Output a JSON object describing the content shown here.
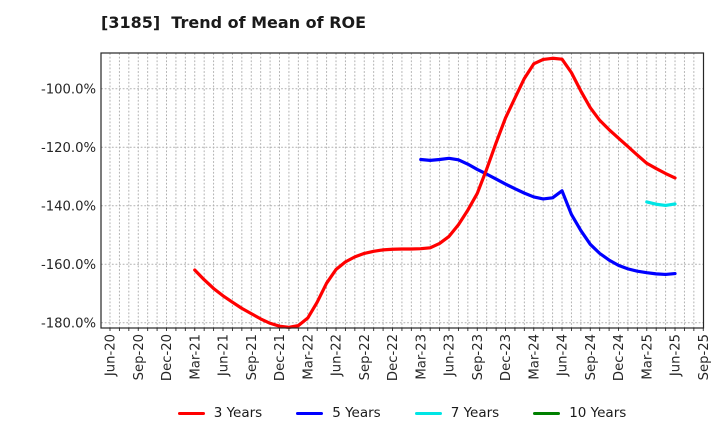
{
  "title": "[3185]  Trend of Mean of ROE",
  "colors": {
    "red": "#ff0000",
    "blue": "#0000ff",
    "cyan": "#00e5e5",
    "green": "#008000",
    "grid": "#b0b0b0",
    "frame": "#262626",
    "tick_text": "#262626",
    "title_text": "#1a1a1a",
    "background": "#ffffff"
  },
  "legend": {
    "items": [
      {
        "label": "3 Years",
        "color": "#ff0000"
      },
      {
        "label": "5 Years",
        "color": "#0000ff"
      },
      {
        "label": "7 Years",
        "color": "#00e5e5"
      },
      {
        "label": "10 Years",
        "color": "#008000"
      }
    ]
  },
  "chart_data": {
    "type": "line",
    "title": "[3185]  Trend of Mean of ROE",
    "xlabel": "",
    "ylabel": "",
    "ylim": [
      -182,
      -88
    ],
    "y_ticks": [
      {
        "label": "-100.0%",
        "value": -100
      },
      {
        "label": "-120.0%",
        "value": -120
      },
      {
        "label": "-140.0%",
        "value": -140
      },
      {
        "label": "-160.0%",
        "value": -160
      },
      {
        "label": "-180.0%",
        "value": -180
      }
    ],
    "x_ticks": [
      "Jun-20",
      "Sep-20",
      "Dec-20",
      "Mar-21",
      "Jun-21",
      "Sep-21",
      "Dec-21",
      "Mar-22",
      "Jun-22",
      "Sep-22",
      "Dec-22",
      "Mar-23",
      "Jun-23",
      "Sep-23",
      "Dec-23",
      "Mar-24",
      "Jun-24",
      "Sep-24",
      "Dec-24",
      "Mar-25",
      "Jun-25",
      "Sep-25"
    ],
    "x_tick_month_step": 3,
    "grid": "vertical dotted monthly, horizontal dotted every 20%",
    "legend_position": "bottom center",
    "series": [
      {
        "name": "3 Years",
        "color": "#ff0000",
        "start_month_index": 9,
        "start_label": "Mar-21",
        "values_unit": "%",
        "values": [
          -162.0,
          -165.3,
          -168.3,
          -170.8,
          -173.0,
          -175.1,
          -176.9,
          -178.7,
          -180.2,
          -181.2,
          -181.6,
          -181.0,
          -178.4,
          -173.0,
          -166.5,
          -161.8,
          -159.2,
          -157.5,
          -156.3,
          -155.6,
          -155.1,
          -154.9,
          -154.8,
          -154.8,
          -154.7,
          -154.4,
          -152.9,
          -150.5,
          -146.5,
          -141.5,
          -135.8,
          -127.5,
          -118.5,
          -110.0,
          -103.2,
          -96.5,
          -91.5,
          -90.0,
          -89.6,
          -89.9,
          -94.5,
          -100.8,
          -106.5,
          -110.8,
          -114.0,
          -116.9,
          -119.8,
          -122.7,
          -125.5,
          -127.3,
          -129.0,
          -130.5
        ]
      },
      {
        "name": "5 Years",
        "color": "#0000ff",
        "start_month_index": 33,
        "start_label": "Mar-23",
        "values_unit": "%",
        "values": [
          -124.2,
          -124.5,
          -124.2,
          -123.8,
          -124.3,
          -125.8,
          -127.6,
          -129.2,
          -130.9,
          -132.6,
          -134.2,
          -135.7,
          -137.0,
          -137.7,
          -137.3,
          -134.9,
          -143.0,
          -148.5,
          -153.2,
          -156.3,
          -158.6,
          -160.4,
          -161.6,
          -162.4,
          -162.9,
          -163.3,
          -163.5,
          -163.2
        ]
      },
      {
        "name": "7 Years",
        "color": "#00e5e5",
        "start_month_index": 57,
        "start_label": "Mar-25",
        "values_unit": "%",
        "values": [
          -138.7,
          -139.5,
          -139.9,
          -139.4
        ]
      },
      {
        "name": "10 Years",
        "color": "#008000",
        "start_month_index": null,
        "start_label": null,
        "values_unit": "%",
        "values": []
      }
    ]
  }
}
